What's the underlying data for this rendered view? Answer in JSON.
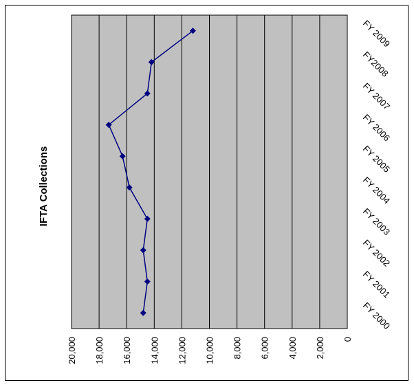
{
  "chart_data": {
    "type": "line",
    "title": "IFTA Collections",
    "categories": [
      "FY 2000",
      "FY 2001",
      "FY 2002",
      "FY 2003",
      "FY 2004",
      "FY 2005",
      "FY 2006",
      "FY 2007",
      "FY2008",
      "FY 2009"
    ],
    "series": [
      {
        "values": [
          14800,
          14500,
          14800,
          14500,
          15800,
          16300,
          17300,
          14500,
          14200,
          11200
        ]
      }
    ],
    "value_ticks": [
      "0",
      "2,000",
      "4,000",
      "6,000",
      "8,000",
      "10,000",
      "12,000",
      "14,000",
      "16,000",
      "18,000",
      "20,000"
    ],
    "ylim": [
      0,
      20000
    ],
    "grid": true,
    "legend": "none",
    "orientation": "rotated 90 degrees clockwise",
    "colors": {
      "series": "#000080",
      "plot_background": "#c0c0c0",
      "gridline": "#000000"
    }
  }
}
